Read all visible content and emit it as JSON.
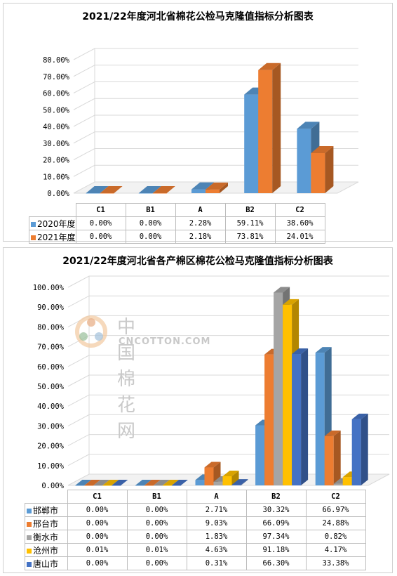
{
  "chart_data": [
    {
      "type": "bar",
      "title": "2021/22年度河北省棉花公检马克隆值指标分析图表",
      "categories": [
        "C1",
        "B1",
        "A",
        "B2",
        "C2"
      ],
      "y_ticks": [
        "0.00%",
        "10.00%",
        "20.00%",
        "30.00%",
        "40.00%",
        "50.00%",
        "60.00%",
        "70.00%",
        "80.00%"
      ],
      "ylim": [
        0,
        80
      ],
      "series": [
        {
          "name": "2020年度",
          "color": "#5b9bd5",
          "values": [
            0.0,
            0.0,
            2.28,
            59.11,
            38.6
          ],
          "labels": [
            "0.00%",
            "0.00%",
            "2.28%",
            "59.11%",
            "38.60%"
          ]
        },
        {
          "name": "2021年度",
          "color": "#ed7d31",
          "values": [
            0.0,
            0.0,
            2.18,
            73.81,
            24.01
          ],
          "labels": [
            "0.00%",
            "0.00%",
            "2.18%",
            "73.81%",
            "24.01%"
          ]
        }
      ]
    },
    {
      "type": "bar",
      "title": "2021/22年度河北省各产棉区棉花公检马克隆值指标分析图表",
      "categories": [
        "C1",
        "B1",
        "A",
        "B2",
        "C2"
      ],
      "y_ticks": [
        "0.00%",
        "10.00%",
        "20.00%",
        "30.00%",
        "40.00%",
        "50.00%",
        "60.00%",
        "70.00%",
        "80.00%",
        "90.00%",
        "100.00%"
      ],
      "ylim": [
        0,
        100
      ],
      "series": [
        {
          "name": "邯郸市",
          "color": "#5b9bd5",
          "values": [
            0.0,
            0.0,
            2.71,
            30.32,
            66.97
          ],
          "labels": [
            "0.00%",
            "0.00%",
            "2.71%",
            "30.32%",
            "66.97%"
          ]
        },
        {
          "name": "邢台市",
          "color": "#ed7d31",
          "values": [
            0.0,
            0.0,
            9.03,
            66.09,
            24.88
          ],
          "labels": [
            "0.00%",
            "0.00%",
            "9.03%",
            "66.09%",
            "24.88%"
          ]
        },
        {
          "name": "衡水市",
          "color": "#a5a5a5",
          "values": [
            0.0,
            0.0,
            1.83,
            97.34,
            0.82
          ],
          "labels": [
            "0.00%",
            "0.00%",
            "1.83%",
            "97.34%",
            "0.82%"
          ]
        },
        {
          "name": "沧州市",
          "color": "#ffc000",
          "values": [
            0.01,
            0.01,
            4.63,
            91.18,
            4.17
          ],
          "labels": [
            "0.01%",
            "0.01%",
            "4.63%",
            "91.18%",
            "4.17%"
          ]
        },
        {
          "name": "唐山市",
          "color": "#4472c4",
          "values": [
            0.0,
            0.0,
            0.31,
            66.3,
            33.38
          ],
          "labels": [
            "0.00%",
            "0.00%",
            "0.31%",
            "66.30%",
            "33.38%"
          ]
        }
      ]
    }
  ],
  "watermark": {
    "cn": "中国棉花网",
    "en": "CNCOTTON.COM"
  }
}
